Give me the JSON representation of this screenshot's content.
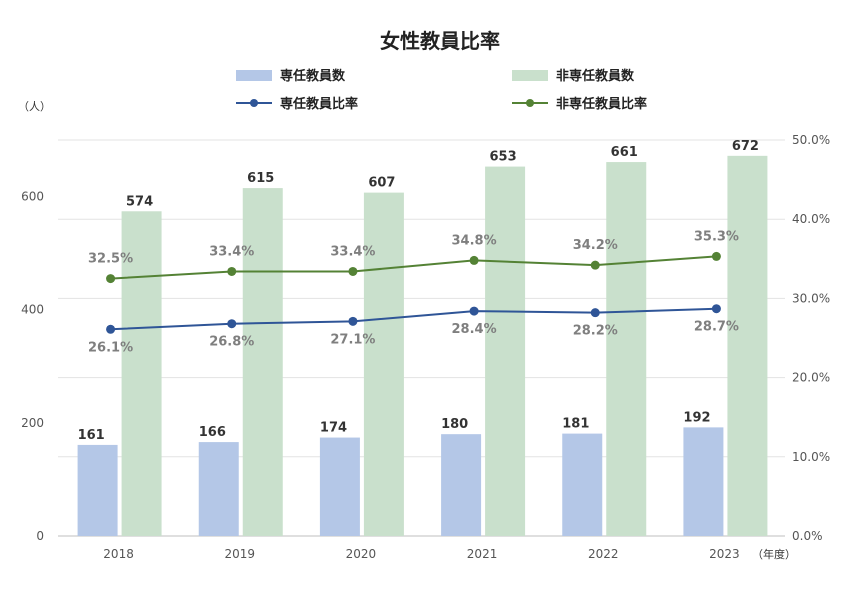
{
  "chart_data": {
    "type": "bar",
    "title": "女性教員比率",
    "categories": [
      "2018",
      "2019",
      "2020",
      "2021",
      "2022",
      "2023"
    ],
    "y_left": {
      "ylim": [
        0,
        700
      ],
      "ticks": [
        "0",
        "200",
        "400",
        "600"
      ],
      "unit": "（人）"
    },
    "y_right": {
      "ylim": [
        0,
        50
      ],
      "ticks": [
        "0.0%",
        "10.0%",
        "20.0%",
        "30.0%",
        "40.0%",
        "50.0%"
      ]
    },
    "x_unit": "（年度）",
    "legend_position": "top",
    "grid": true,
    "series": [
      {
        "name": "専任教員数",
        "kind": "bar",
        "axis": "left",
        "color": "#b4c7e7",
        "values": [
          161,
          166,
          174,
          180,
          181,
          192
        ],
        "labels": [
          "161",
          "166",
          "174",
          "180",
          "181",
          "192"
        ]
      },
      {
        "name": "非専任教員数",
        "kind": "bar",
        "axis": "left",
        "color": "#c9e0cc",
        "values": [
          574,
          615,
          607,
          653,
          661,
          672
        ],
        "labels": [
          "574",
          "615",
          "607",
          "653",
          "661",
          "672"
        ]
      },
      {
        "name": "専任教員比率",
        "kind": "line",
        "axis": "right",
        "color": "#2f5597",
        "values": [
          26.1,
          26.8,
          27.1,
          28.4,
          28.2,
          28.7
        ],
        "labels": [
          "26.1%",
          "26.8%",
          "27.1%",
          "28.4%",
          "28.2%",
          "28.7%"
        ]
      },
      {
        "name": "非専任教員比率",
        "kind": "line",
        "axis": "right",
        "color": "#548235",
        "values": [
          32.5,
          33.4,
          33.4,
          34.8,
          34.2,
          35.3
        ],
        "labels": [
          "32.5%",
          "33.4%",
          "33.4%",
          "34.8%",
          "34.2%",
          "35.3%"
        ]
      }
    ]
  }
}
